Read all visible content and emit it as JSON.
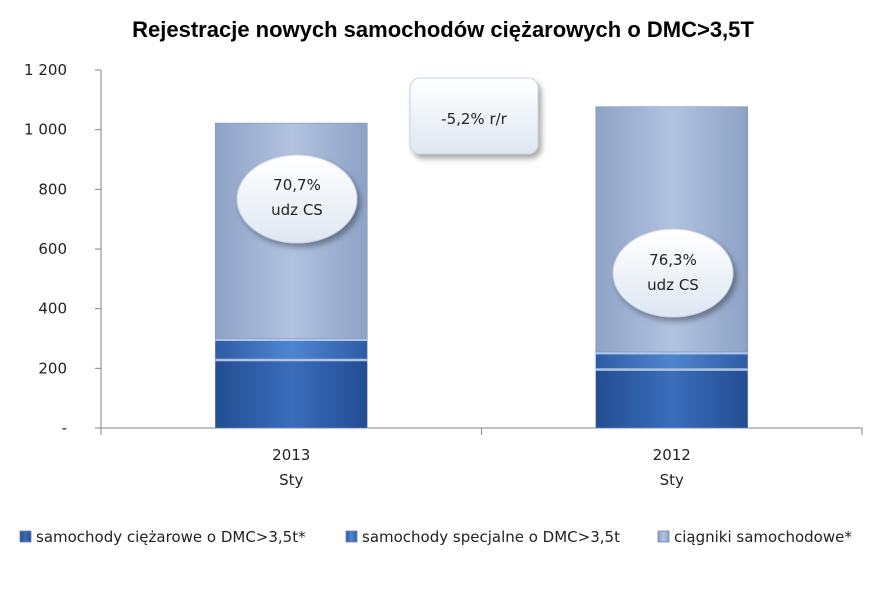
{
  "chart_data": {
    "type": "bar",
    "stacked": true,
    "title": "Rejestracje nowych samochodów ciężarowych o DMC>3,5T",
    "xlabel": "",
    "ylabel": "",
    "ylim": [
      0,
      1200
    ],
    "yticks": [
      {
        "value": 0,
        "label": "-"
      },
      {
        "value": 200,
        "label": "200"
      },
      {
        "value": 400,
        "label": "400"
      },
      {
        "value": 600,
        "label": "600"
      },
      {
        "value": 800,
        "label": "800"
      },
      {
        "value": 1000,
        "label": "1 000"
      },
      {
        "value": 1200,
        "label": "1 200"
      }
    ],
    "categories": [
      {
        "line1": "2013",
        "line2": "Sty"
      },
      {
        "line1": "2012",
        "line2": "Sty"
      }
    ],
    "series": [
      {
        "name": "samochody ciężarowe o DMC>3,5t*",
        "color": "#2f5ea8",
        "values": [
          232,
          200
        ]
      },
      {
        "name": "samochody specjalne o DMC>3,5t",
        "color": "#3f74c2",
        "values": [
          68,
          55
        ]
      },
      {
        "name": "ciągniki samochodowe*",
        "color": "#a7b9d8",
        "values": [
          722,
          822
        ]
      }
    ],
    "annotations": {
      "change": "-5,2% r/r",
      "bubble_2013": {
        "line1": "70,7%",
        "line2": "udz CS"
      },
      "bubble_2012": {
        "line1": "76,3%",
        "line2": "udz CS"
      }
    },
    "legend_position": "bottom",
    "grid": false
  }
}
